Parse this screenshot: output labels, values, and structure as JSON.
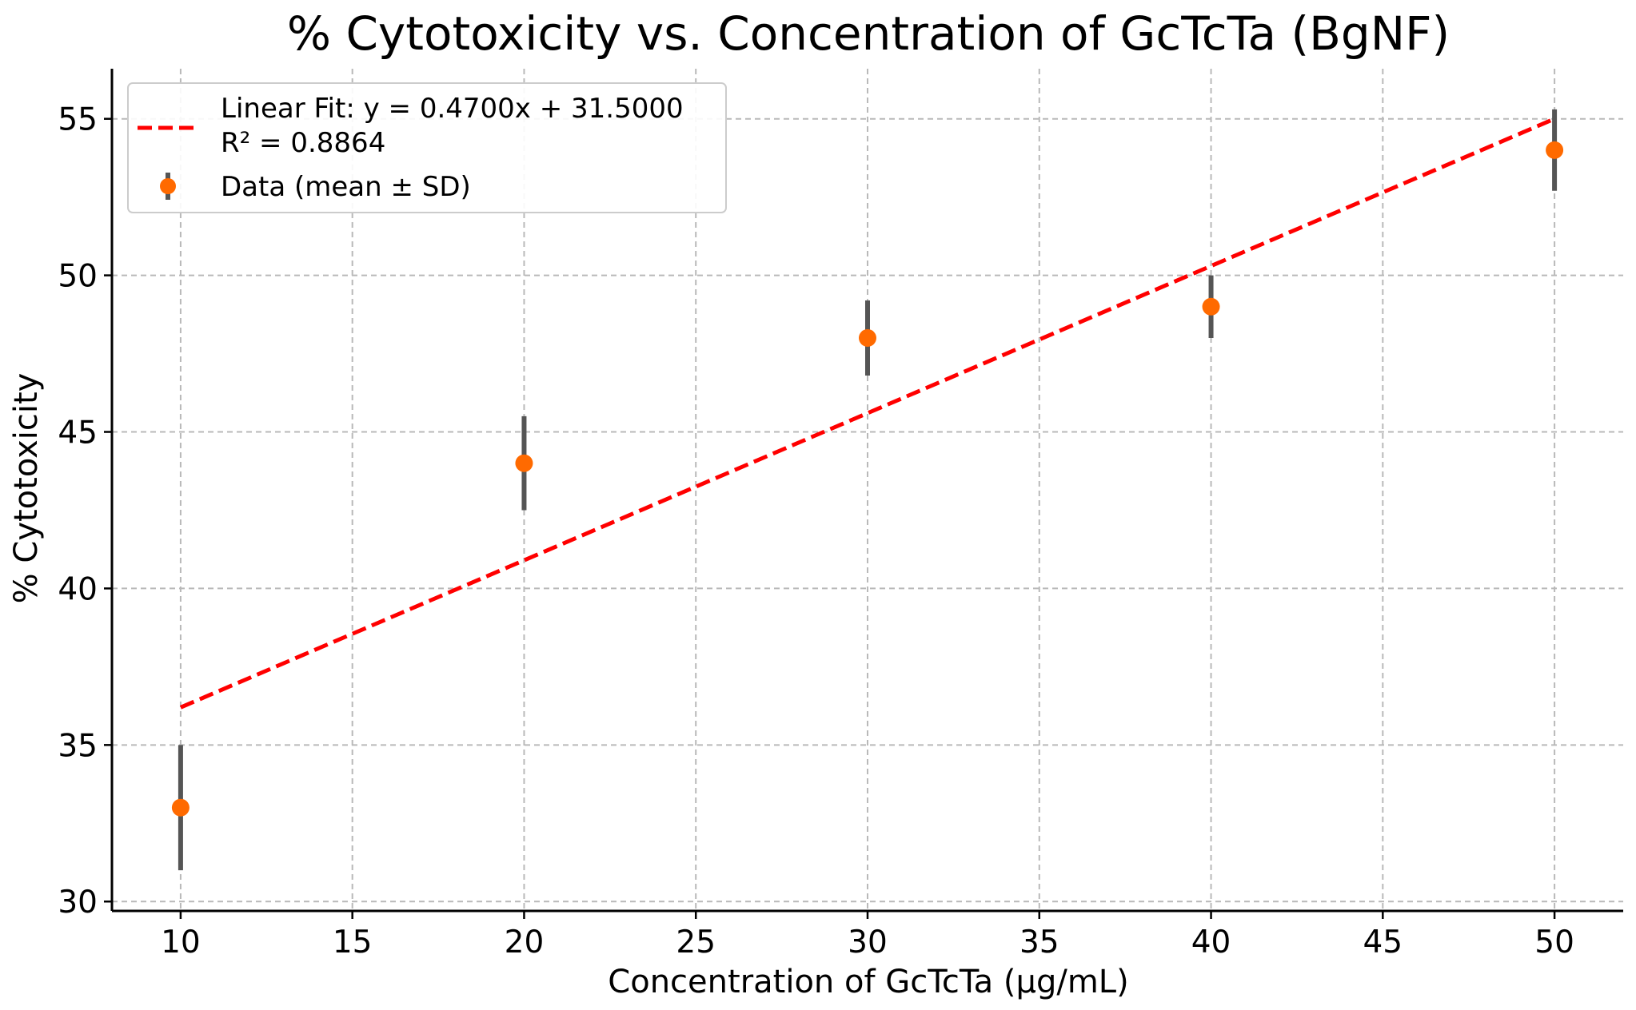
{
  "chart_data": {
    "type": "scatter",
    "title": "% Cytotoxicity vs. Concentration of GcTcTa (BgNF)",
    "xlabel": "Concentration of GcTcTa (µg/mL)",
    "ylabel": "% Cytotoxicity",
    "xlim": [
      8,
      52
    ],
    "ylim": [
      29.7,
      56.6
    ],
    "xticks": [
      10,
      15,
      20,
      25,
      30,
      35,
      40,
      45,
      50
    ],
    "yticks": [
      30,
      35,
      40,
      45,
      50,
      55
    ],
    "grid": true,
    "legend_position": "top-left",
    "series": [
      {
        "name": "Data (mean ± SD)",
        "kind": "errorbar",
        "color": "#ff6a00",
        "error_color": "#555555",
        "x": [
          10,
          20,
          30,
          40,
          50
        ],
        "y": [
          33,
          44,
          48,
          49,
          54
        ],
        "yerr": [
          2.0,
          1.5,
          1.2,
          1.0,
          1.3
        ]
      },
      {
        "name": "Linear Fit: y = 0.4700x + 31.5000",
        "name_line2": "R² = 0.8864",
        "kind": "line",
        "style": "dashed",
        "color": "#ff0000",
        "slope": 0.47,
        "intercept": 31.5,
        "x": [
          10,
          50
        ],
        "y": [
          36.2,
          55.0
        ]
      }
    ]
  }
}
